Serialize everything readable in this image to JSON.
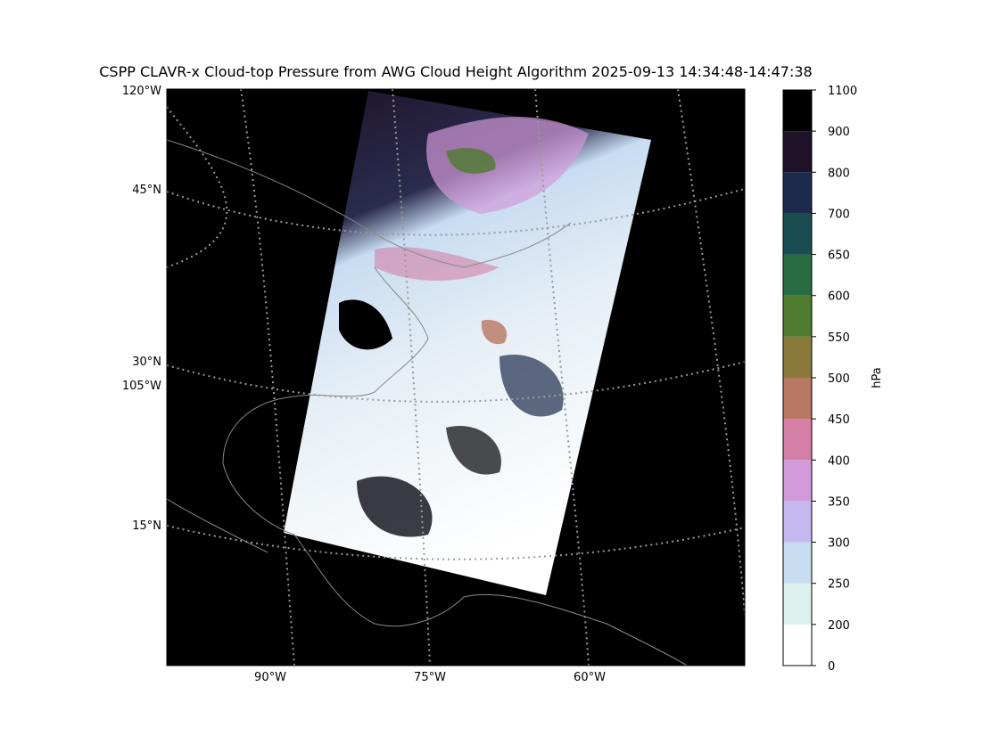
{
  "title": "CSPP CLAVR-x Cloud-top Pressure from AWG Cloud Height Algorithm 2025-09-13 14:34:48-14:47:38",
  "map": {
    "lon_labels_bottom": [
      "90°W",
      "75°W",
      "60°W"
    ],
    "labels_left": [
      "120°W",
      "45°N",
      "30°N",
      "105°W",
      "15°N"
    ]
  },
  "colorbar": {
    "label": "hPa",
    "boundaries": [
      0,
      200,
      250,
      300,
      350,
      400,
      450,
      500,
      550,
      600,
      650,
      700,
      800,
      900,
      1100
    ],
    "colors": [
      "#ffffff",
      "#dcf1ee",
      "#c8dcf2",
      "#c3b9f0",
      "#d39ad9",
      "#d47fa6",
      "#b87762",
      "#897a3b",
      "#4f7b2f",
      "#276b41",
      "#1a4d52",
      "#1c2b4c",
      "#1e1229",
      "#000000"
    ]
  }
}
